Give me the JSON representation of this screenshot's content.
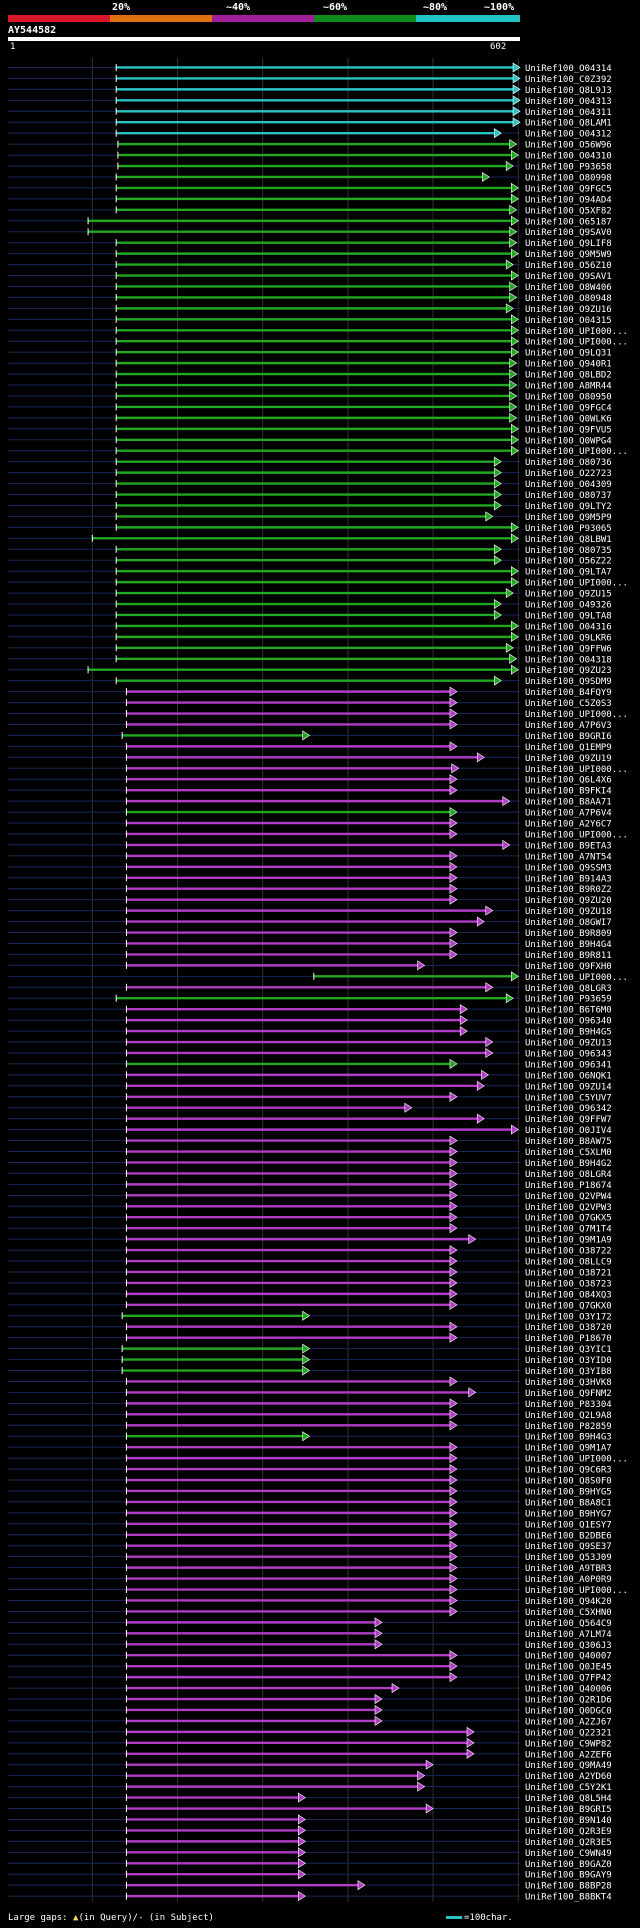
{
  "colors": {
    "background": "#000000",
    "cyan": "#2bc4c4",
    "green": "#22a822",
    "magenta": "#b13cc6",
    "text": "#ffffff",
    "row_line": "#152858",
    "vgrid": "#333333",
    "gap_mark": "#f0e060"
  },
  "legend": {
    "labels": [
      "20%",
      "~40%",
      "~60%",
      "~80%",
      "~100%"
    ],
    "segment_colors": [
      "#d8182a",
      "#e07010",
      "#a0209a",
      "#108a18",
      "#20c2c2"
    ]
  },
  "query": {
    "name": "AY544582",
    "start_label": "1",
    "end_label": "602"
  },
  "footer": {
    "gaps_text": "Large gaps: ▲(in Query)/- (in Subject)",
    "scale_text": "=100char."
  },
  "chart_data": {
    "type": "blast-alignment-overview",
    "query_length": 602,
    "x_axis_range": [
      1,
      602
    ],
    "vertical_gridlines_at": [
      100,
      200,
      300,
      400,
      500,
      600
    ],
    "series": [
      "cyan",
      "green",
      "magenta"
    ],
    "hits": [
      {
        "id": "UniRef100_O04314",
        "c": "c",
        "s": 128,
        "e": 602
      },
      {
        "id": "UniRef100_C0Z392",
        "c": "c",
        "s": 128,
        "e": 602
      },
      {
        "id": "UniRef100_Q8L9J3",
        "c": "c",
        "s": 128,
        "e": 602
      },
      {
        "id": "UniRef100_O04313",
        "c": "c",
        "s": 128,
        "e": 602
      },
      {
        "id": "UniRef100_O04311",
        "c": "c",
        "s": 128,
        "e": 602
      },
      {
        "id": "UniRef100_Q8LAM1",
        "c": "c",
        "s": 128,
        "e": 602
      },
      {
        "id": "UniRef100_O04312",
        "c": "c",
        "s": 128,
        "e": 580
      },
      {
        "id": "UniRef100_O56W96",
        "c": "g",
        "s": 130,
        "e": 598
      },
      {
        "id": "UniRef100_O04310",
        "c": "g",
        "s": 130,
        "e": 600
      },
      {
        "id": "UniRef100_P93658",
        "c": "g",
        "s": 130,
        "e": 594
      },
      {
        "id": "UniRef100_O80998",
        "c": "g",
        "s": 128,
        "e": 566
      },
      {
        "id": "UniRef100_Q9FGC5",
        "c": "g",
        "s": 128,
        "e": 600
      },
      {
        "id": "UniRef100_O94AD4",
        "c": "g",
        "s": 128,
        "e": 600
      },
      {
        "id": "UniRef100_Q5XF82",
        "c": "g",
        "s": 128,
        "e": 598
      },
      {
        "id": "UniRef100_O65187",
        "c": "g",
        "s": 95,
        "e": 600
      },
      {
        "id": "UniRef100_Q9SAV0",
        "c": "g",
        "s": 95,
        "e": 598
      },
      {
        "id": "UniRef100_Q9LIF8",
        "c": "g",
        "s": 128,
        "e": 598
      },
      {
        "id": "UniRef100_Q9M5W9",
        "c": "g",
        "s": 128,
        "e": 600
      },
      {
        "id": "UniRef100_O56Z10",
        "c": "g",
        "s": 128,
        "e": 594
      },
      {
        "id": "UniRef100_Q9SAV1",
        "c": "g",
        "s": 128,
        "e": 600
      },
      {
        "id": "UniRef100_O8W406",
        "c": "g",
        "s": 128,
        "e": 598
      },
      {
        "id": "UniRef100_O80948",
        "c": "g",
        "s": 128,
        "e": 598
      },
      {
        "id": "UniRef100_O9ZU16",
        "c": "g",
        "s": 128,
        "e": 594
      },
      {
        "id": "UniRef100_O04315",
        "c": "g",
        "s": 128,
        "e": 600
      },
      {
        "id": "UniRef100_UPI000...",
        "c": "g",
        "s": 128,
        "e": 600
      },
      {
        "id": "UniRef100_UPI000...",
        "c": "g",
        "s": 128,
        "e": 600
      },
      {
        "id": "UniRef100_Q9LQ31",
        "c": "g",
        "s": 128,
        "e": 600
      },
      {
        "id": "UniRef100_Q940R1",
        "c": "g",
        "s": 128,
        "e": 598
      },
      {
        "id": "UniRef100_Q8LBD2",
        "c": "g",
        "s": 128,
        "e": 598
      },
      {
        "id": "UniRef100_A8MR44",
        "c": "g",
        "s": 128,
        "e": 598
      },
      {
        "id": "UniRef100_O80950",
        "c": "g",
        "s": 128,
        "e": 598
      },
      {
        "id": "UniRef100_Q9FGC4",
        "c": "g",
        "s": 128,
        "e": 598
      },
      {
        "id": "UniRef100_Q0WLK6",
        "c": "g",
        "s": 128,
        "e": 598
      },
      {
        "id": "UniRef100_Q9FVU5",
        "c": "g",
        "s": 128,
        "e": 600
      },
      {
        "id": "UniRef100_Q0WPG4",
        "c": "g",
        "s": 128,
        "e": 600
      },
      {
        "id": "UniRef100_UPI000...",
        "c": "g",
        "s": 128,
        "e": 600
      },
      {
        "id": "UniRef100_O80736",
        "c": "g",
        "s": 128,
        "e": 580
      },
      {
        "id": "UniRef100_O22723",
        "c": "g",
        "s": 128,
        "e": 580
      },
      {
        "id": "UniRef100_O04309",
        "c": "g",
        "s": 128,
        "e": 580
      },
      {
        "id": "UniRef100_O80737",
        "c": "g",
        "s": 128,
        "e": 580
      },
      {
        "id": "UniRef100_Q9LTY2",
        "c": "g",
        "s": 128,
        "e": 580
      },
      {
        "id": "UniRef100_Q9M5P9",
        "c": "g",
        "s": 128,
        "e": 570
      },
      {
        "id": "UniRef100_P93065",
        "c": "g",
        "s": 128,
        "e": 600
      },
      {
        "id": "UniRef100_Q8LBW1",
        "c": "g",
        "s": 100,
        "e": 600
      },
      {
        "id": "UniRef100_O80735",
        "c": "g",
        "s": 128,
        "e": 580
      },
      {
        "id": "UniRef100_O56Z22",
        "c": "g",
        "s": 128,
        "e": 580
      },
      {
        "id": "UniRef100_Q9LTA7",
        "c": "g",
        "s": 128,
        "e": 600
      },
      {
        "id": "UniRef100_UPI000...",
        "c": "g",
        "s": 128,
        "e": 600
      },
      {
        "id": "UniRef100_Q9ZU15",
        "c": "g",
        "s": 128,
        "e": 594
      },
      {
        "id": "UniRef100_O49326",
        "c": "g",
        "s": 128,
        "e": 580
      },
      {
        "id": "UniRef100_Q9LTA8",
        "c": "g",
        "s": 128,
        "e": 580
      },
      {
        "id": "UniRef100_O04316",
        "c": "g",
        "s": 128,
        "e": 600
      },
      {
        "id": "UniRef100_Q9LKR6",
        "c": "g",
        "s": 128,
        "e": 600
      },
      {
        "id": "UniRef100_Q9FFW6",
        "c": "g",
        "s": 128,
        "e": 594
      },
      {
        "id": "UniRef100_O04318",
        "c": "g",
        "s": 128,
        "e": 598
      },
      {
        "id": "UniRef100_Q9ZU23",
        "c": "g",
        "s": 95,
        "e": 600
      },
      {
        "id": "UniRef100_Q9SDM9",
        "c": "g",
        "s": 128,
        "e": 580
      },
      {
        "id": "UniRef100_B4FQY9",
        "c": "m",
        "s": 140,
        "e": 528
      },
      {
        "id": "UniRef100_C5Z0S3",
        "c": "m",
        "s": 140,
        "e": 528
      },
      {
        "id": "UniRef100_UPI000...",
        "c": "m",
        "s": 140,
        "e": 528
      },
      {
        "id": "UniRef100_A7P6V3",
        "c": "m",
        "s": 140,
        "e": 528
      },
      {
        "id": "UniRef100_B9GRI6",
        "c": "g",
        "s": 135,
        "e": 355
      },
      {
        "id": "UniRef100_Q1EMP9",
        "c": "m",
        "s": 140,
        "e": 528
      },
      {
        "id": "UniRef100_Q9ZU19",
        "c": "m",
        "s": 140,
        "e": 560
      },
      {
        "id": "UniRef100_UPI000...",
        "c": "m",
        "s": 140,
        "e": 530
      },
      {
        "id": "UniRef100_Q6L4X6",
        "c": "m",
        "s": 140,
        "e": 528
      },
      {
        "id": "UniRef100_B9FKI4",
        "c": "m",
        "s": 140,
        "e": 528
      },
      {
        "id": "UniRef100_B8AA71",
        "c": "m",
        "s": 140,
        "e": 590
      },
      {
        "id": "UniRef100_A7P6V4",
        "c": "g",
        "s": 140,
        "e": 528
      },
      {
        "id": "UniRef100_A2Y6C7",
        "c": "m",
        "s": 140,
        "e": 528
      },
      {
        "id": "UniRef100_UPI000...",
        "c": "m",
        "s": 140,
        "e": 528
      },
      {
        "id": "UniRef100_B9ETA3",
        "c": "m",
        "s": 140,
        "e": 590
      },
      {
        "id": "UniRef100_A7NT54",
        "c": "m",
        "s": 140,
        "e": 528
      },
      {
        "id": "UniRef100_Q9SSM3",
        "c": "m",
        "s": 140,
        "e": 528
      },
      {
        "id": "UniRef100_B914A3",
        "c": "m",
        "s": 140,
        "e": 528
      },
      {
        "id": "UniRef100_B9R0Z2",
        "c": "m",
        "s": 140,
        "e": 528
      },
      {
        "id": "UniRef100_Q9ZU20",
        "c": "m",
        "s": 140,
        "e": 528
      },
      {
        "id": "UniRef100_Q9ZU18",
        "c": "m",
        "s": 140,
        "e": 570
      },
      {
        "id": "UniRef100_O8GWI7",
        "c": "m",
        "s": 140,
        "e": 560
      },
      {
        "id": "UniRef100_B9R809",
        "c": "m",
        "s": 140,
        "e": 528
      },
      {
        "id": "UniRef100_B9H4G4",
        "c": "m",
        "s": 140,
        "e": 528
      },
      {
        "id": "UniRef100_B9R811",
        "c": "m",
        "s": 140,
        "e": 528
      },
      {
        "id": "UniRef100_Q9FXH0",
        "c": "m",
        "s": 140,
        "e": 490
      },
      {
        "id": "UniRef100_UPI000...",
        "c": "g",
        "s": 360,
        "e": 600
      },
      {
        "id": "UniRef100_Q8LGR3",
        "c": "m",
        "s": 140,
        "e": 570
      },
      {
        "id": "UniRef100_P93659",
        "c": "g",
        "s": 128,
        "e": 594
      },
      {
        "id": "UniRef100_B6T6M0",
        "c": "m",
        "s": 140,
        "e": 540
      },
      {
        "id": "UniRef100_O96340",
        "c": "m",
        "s": 140,
        "e": 540
      },
      {
        "id": "UniRef100_B9H4G5",
        "c": "m",
        "s": 140,
        "e": 540
      },
      {
        "id": "UniRef100_O9ZU13",
        "c": "m",
        "s": 140,
        "e": 570
      },
      {
        "id": "UniRef100_O96343",
        "c": "m",
        "s": 140,
        "e": 570
      },
      {
        "id": "UniRef100_O96341",
        "c": "g",
        "s": 140,
        "e": 528
      },
      {
        "id": "UniRef100_O6NQK1",
        "c": "m",
        "s": 140,
        "e": 565
      },
      {
        "id": "UniRef100_O9ZU14",
        "c": "m",
        "s": 140,
        "e": 560
      },
      {
        "id": "UniRef100_C5YUV7",
        "c": "m",
        "s": 140,
        "e": 528
      },
      {
        "id": "UniRef100_O96342",
        "c": "m",
        "s": 140,
        "e": 475
      },
      {
        "id": "UniRef100_Q9FFW7",
        "c": "m",
        "s": 140,
        "e": 560
      },
      {
        "id": "UniRef100_O0JIV4",
        "c": "m",
        "s": 140,
        "e": 600
      },
      {
        "id": "UniRef100_B8AW75",
        "c": "m",
        "s": 140,
        "e": 528
      },
      {
        "id": "UniRef100_C5XLM0",
        "c": "m",
        "s": 140,
        "e": 528
      },
      {
        "id": "UniRef100_B9H4G2",
        "c": "m",
        "s": 140,
        "e": 528
      },
      {
        "id": "UniRef100_O8LGR4",
        "c": "m",
        "s": 140,
        "e": 528
      },
      {
        "id": "UniRef100_P18674",
        "c": "m",
        "s": 140,
        "e": 528
      },
      {
        "id": "UniRef100_Q2VPW4",
        "c": "m",
        "s": 140,
        "e": 528
      },
      {
        "id": "UniRef100_Q2VPW3",
        "c": "m",
        "s": 140,
        "e": 528
      },
      {
        "id": "UniRef100_Q7GKX5",
        "c": "m",
        "s": 140,
        "e": 528
      },
      {
        "id": "UniRef100_Q7M1T4",
        "c": "m",
        "s": 140,
        "e": 528
      },
      {
        "id": "UniRef100_Q9M1A9",
        "c": "m",
        "s": 140,
        "e": 550
      },
      {
        "id": "UniRef100_O38722",
        "c": "m",
        "s": 140,
        "e": 528
      },
      {
        "id": "UniRef100_O8LLC9",
        "c": "m",
        "s": 140,
        "e": 528
      },
      {
        "id": "UniRef100_O38721",
        "c": "m",
        "s": 140,
        "e": 528
      },
      {
        "id": "UniRef100_O38723",
        "c": "m",
        "s": 140,
        "e": 528
      },
      {
        "id": "UniRef100_O84XQ3",
        "c": "m",
        "s": 140,
        "e": 528
      },
      {
        "id": "UniRef100_Q7GKX0",
        "c": "m",
        "s": 140,
        "e": 528
      },
      {
        "id": "UniRef100_O3Y172",
        "c": "g",
        "s": 135,
        "e": 355
      },
      {
        "id": "UniRef100_O38720",
        "c": "m",
        "s": 140,
        "e": 528
      },
      {
        "id": "UniRef100_P18670",
        "c": "m",
        "s": 140,
        "e": 528
      },
      {
        "id": "UniRef100_Q3YIC1",
        "c": "g",
        "s": 135,
        "e": 355
      },
      {
        "id": "UniRef100_O3YID0",
        "c": "g",
        "s": 135,
        "e": 355
      },
      {
        "id": "UniRef100_Q3YIB8",
        "c": "g",
        "s": 135,
        "e": 355
      },
      {
        "id": "UniRef100_Q3HVK8",
        "c": "m",
        "s": 140,
        "e": 528
      },
      {
        "id": "UniRef100_Q9FNM2",
        "c": "m",
        "s": 140,
        "e": 550
      },
      {
        "id": "UniRef100_P83304",
        "c": "m",
        "s": 140,
        "e": 528
      },
      {
        "id": "UniRef100_Q2L9A8",
        "c": "m",
        "s": 140,
        "e": 528
      },
      {
        "id": "UniRef100_P82859",
        "c": "m",
        "s": 140,
        "e": 528
      },
      {
        "id": "UniRef100_B9H4G3",
        "c": "g",
        "s": 140,
        "e": 355
      },
      {
        "id": "UniRef100_Q9M1A7",
        "c": "m",
        "s": 140,
        "e": 528
      },
      {
        "id": "UniRef100_UPI000...",
        "c": "m",
        "s": 140,
        "e": 528
      },
      {
        "id": "UniRef100_Q9C6R3",
        "c": "m",
        "s": 140,
        "e": 528
      },
      {
        "id": "UniRef100_Q8S0F0",
        "c": "m",
        "s": 140,
        "e": 528
      },
      {
        "id": "UniRef100_B9HYG5",
        "c": "m",
        "s": 140,
        "e": 528
      },
      {
        "id": "UniRef100_B8A8C1",
        "c": "m",
        "s": 140,
        "e": 528
      },
      {
        "id": "UniRef100_B9HYG7",
        "c": "m",
        "s": 140,
        "e": 528
      },
      {
        "id": "UniRef100_Q1ESY7",
        "c": "m",
        "s": 140,
        "e": 528
      },
      {
        "id": "UniRef100_B2DBE6",
        "c": "m",
        "s": 140,
        "e": 528
      },
      {
        "id": "UniRef100_Q9SE37",
        "c": "m",
        "s": 140,
        "e": 528
      },
      {
        "id": "UniRef100_Q53J09",
        "c": "m",
        "s": 140,
        "e": 528
      },
      {
        "id": "UniRef100_A9TBR3",
        "c": "m",
        "s": 140,
        "e": 528
      },
      {
        "id": "UniRef100_A0P0R9",
        "c": "m",
        "s": 140,
        "e": 528
      },
      {
        "id": "UniRef100_UPI000...",
        "c": "m",
        "s": 140,
        "e": 528
      },
      {
        "id": "UniRef100_Q94K20",
        "c": "m",
        "s": 140,
        "e": 528
      },
      {
        "id": "UniRef100_C5XHN0",
        "c": "m",
        "s": 140,
        "e": 528
      },
      {
        "id": "UniRef100_Q564C9",
        "c": "m",
        "s": 140,
        "e": 440
      },
      {
        "id": "UniRef100_A7LM74",
        "c": "m",
        "s": 140,
        "e": 440
      },
      {
        "id": "UniRef100_Q306J3",
        "c": "m",
        "s": 140,
        "e": 440
      },
      {
        "id": "UniRef100_Q40007",
        "c": "m",
        "s": 140,
        "e": 528
      },
      {
        "id": "UniRef100_Q0JE45",
        "c": "m",
        "s": 140,
        "e": 528
      },
      {
        "id": "UniRef100_Q7FP42",
        "c": "m",
        "s": 140,
        "e": 528
      },
      {
        "id": "UniRef100_Q40006",
        "c": "m",
        "s": 140,
        "e": 460
      },
      {
        "id": "UniRef100_Q2R1D6",
        "c": "m",
        "s": 140,
        "e": 440
      },
      {
        "id": "UniRef100_Q0DGC0",
        "c": "m",
        "s": 140,
        "e": 440
      },
      {
        "id": "UniRef100_A2ZJ67",
        "c": "m",
        "s": 140,
        "e": 440
      },
      {
        "id": "UniRef100_Q22321",
        "c": "m",
        "s": 140,
        "e": 548
      },
      {
        "id": "UniRef100_C9WP82",
        "c": "m",
        "s": 140,
        "e": 548
      },
      {
        "id": "UniRef100_A2ZEF6",
        "c": "m",
        "s": 140,
        "e": 548
      },
      {
        "id": "UniRef100_Q9MA49",
        "c": "m",
        "s": 140,
        "e": 500
      },
      {
        "id": "UniRef100_A2YD60",
        "c": "m",
        "s": 140,
        "e": 490
      },
      {
        "id": "UniRef100_C5Y2K1",
        "c": "m",
        "s": 140,
        "e": 490
      },
      {
        "id": "UniRef100_Q8L5H4",
        "c": "m",
        "s": 140,
        "e": 350
      },
      {
        "id": "UniRef100_B9GRI5",
        "c": "m",
        "s": 140,
        "e": 500
      },
      {
        "id": "UniRef100_B9N140",
        "c": "m",
        "s": 140,
        "e": 350
      },
      {
        "id": "UniRef100_Q2R3E9",
        "c": "m",
        "s": 140,
        "e": 350
      },
      {
        "id": "UniRef100_Q2R3E5",
        "c": "m",
        "s": 140,
        "e": 350
      },
      {
        "id": "UniRef100_C9WN49",
        "c": "m",
        "s": 140,
        "e": 350
      },
      {
        "id": "UniRef100_B9GAZ0",
        "c": "m",
        "s": 140,
        "e": 350
      },
      {
        "id": "UniRef100_B9GAY9",
        "c": "m",
        "s": 140,
        "e": 350
      },
      {
        "id": "UniRef100_B8BP28",
        "c": "m",
        "s": 140,
        "e": 420
      },
      {
        "id": "UniRef100_B8BKT4",
        "c": "m",
        "s": 140,
        "e": 350
      }
    ]
  }
}
